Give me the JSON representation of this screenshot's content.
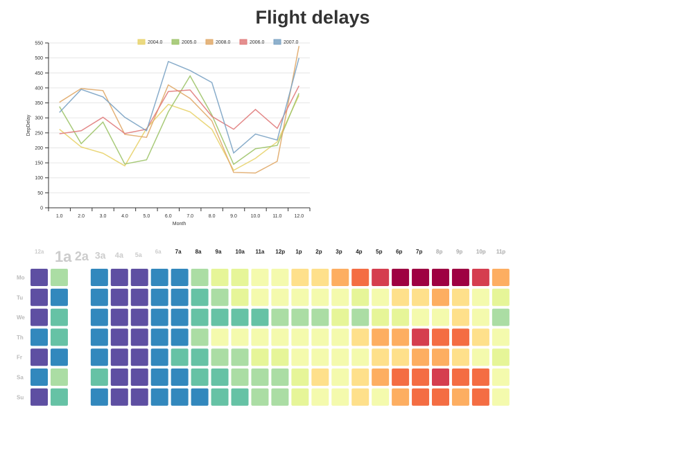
{
  "page": {
    "title": "Flight delays"
  },
  "chart_data": [
    {
      "type": "line",
      "x": [
        1.0,
        2.0,
        3.0,
        4.0,
        5.0,
        6.0,
        7.0,
        8.0,
        9.0,
        10.0,
        11.0,
        12.0
      ],
      "xtick_labels": [
        "1.0",
        "2.0",
        "3.0",
        "4.0",
        "5.0",
        "6.0",
        "7.0",
        "8.0",
        "9.0",
        "10.0",
        "11.0",
        "12.0"
      ],
      "xlabel": "Month",
      "ylabel": "DepDelay",
      "ylim": [
        0,
        550
      ],
      "yticks": [
        0,
        50,
        100,
        150,
        200,
        250,
        300,
        350,
        400,
        450,
        500,
        550
      ],
      "grid": "horizontal",
      "legend": "top",
      "series": [
        {
          "name": "2004.0",
          "color": "#e8d36b",
          "values": [
            262,
            203,
            182,
            140,
            265,
            345,
            320,
            262,
            125,
            165,
            220,
            375
          ]
        },
        {
          "name": "2005.0",
          "color": "#9ec46a",
          "values": [
            338,
            214,
            286,
            146,
            160,
            320,
            440,
            310,
            145,
            197,
            208,
            382
          ]
        },
        {
          "name": "2008.0",
          "color": "#e0a968",
          "values": [
            352,
            398,
            391,
            245,
            235,
            410,
            365,
            290,
            118,
            116,
            155,
            540
          ]
        },
        {
          "name": "2006.0",
          "color": "#e07b7b",
          "values": [
            247,
            257,
            302,
            248,
            262,
            388,
            393,
            305,
            262,
            328,
            265,
            407
          ]
        },
        {
          "name": "2007.0",
          "color": "#7ba3c4",
          "values": [
            318,
            395,
            370,
            302,
            257,
            488,
            458,
            418,
            183,
            246,
            226,
            500
          ]
        }
      ]
    },
    {
      "type": "heatmap",
      "hour_labels": [
        "12a",
        "1a",
        "2a",
        "3a",
        "4a",
        "5a",
        "6a",
        "7a",
        "8a",
        "9a",
        "10a",
        "11a",
        "12p",
        "1p",
        "2p",
        "3p",
        "4p",
        "5p",
        "6p",
        "7p",
        "8p",
        "9p",
        "10p",
        "11p"
      ],
      "day_labels": [
        "Mo",
        "Tu",
        "We",
        "Th",
        "Fr",
        "Sa",
        "Su"
      ],
      "palette": [
        "#5e4fa2",
        "#3288bd",
        "#66c2a5",
        "#abdda4",
        "#e6f598",
        "#f4faad",
        "#fee08b",
        "#fdae61",
        "#f46d43",
        "#d53e4f",
        "#9e0142"
      ],
      "values": [
        [
          0,
          3,
          null,
          1,
          0,
          0,
          1,
          1,
          3,
          4,
          4,
          5,
          5,
          6,
          6,
          7,
          8,
          9,
          10,
          10,
          10,
          10,
          9,
          7
        ],
        [
          0,
          1,
          null,
          1,
          0,
          0,
          1,
          1,
          2,
          3,
          4,
          5,
          5,
          5,
          5,
          5,
          4,
          5,
          6,
          6,
          7,
          6,
          5,
          4
        ],
        [
          0,
          2,
          null,
          1,
          0,
          0,
          1,
          1,
          2,
          2,
          2,
          2,
          3,
          3,
          3,
          4,
          3,
          4,
          4,
          5,
          5,
          6,
          5,
          3
        ],
        [
          1,
          2,
          null,
          1,
          0,
          0,
          1,
          1,
          3,
          5,
          5,
          5,
          5,
          5,
          5,
          5,
          6,
          7,
          7,
          9,
          8,
          8,
          6,
          5
        ],
        [
          0,
          1,
          null,
          1,
          0,
          0,
          1,
          2,
          2,
          3,
          3,
          4,
          4,
          5,
          5,
          5,
          5,
          6,
          6,
          7,
          7,
          6,
          5,
          4
        ],
        [
          1,
          3,
          null,
          2,
          0,
          0,
          1,
          1,
          2,
          2,
          3,
          3,
          3,
          4,
          6,
          5,
          6,
          7,
          8,
          8,
          9,
          8,
          8,
          5
        ],
        [
          0,
          2,
          null,
          1,
          0,
          0,
          1,
          1,
          1,
          2,
          2,
          3,
          3,
          4,
          5,
          5,
          6,
          5,
          7,
          8,
          8,
          7,
          8,
          5
        ]
      ]
    }
  ]
}
